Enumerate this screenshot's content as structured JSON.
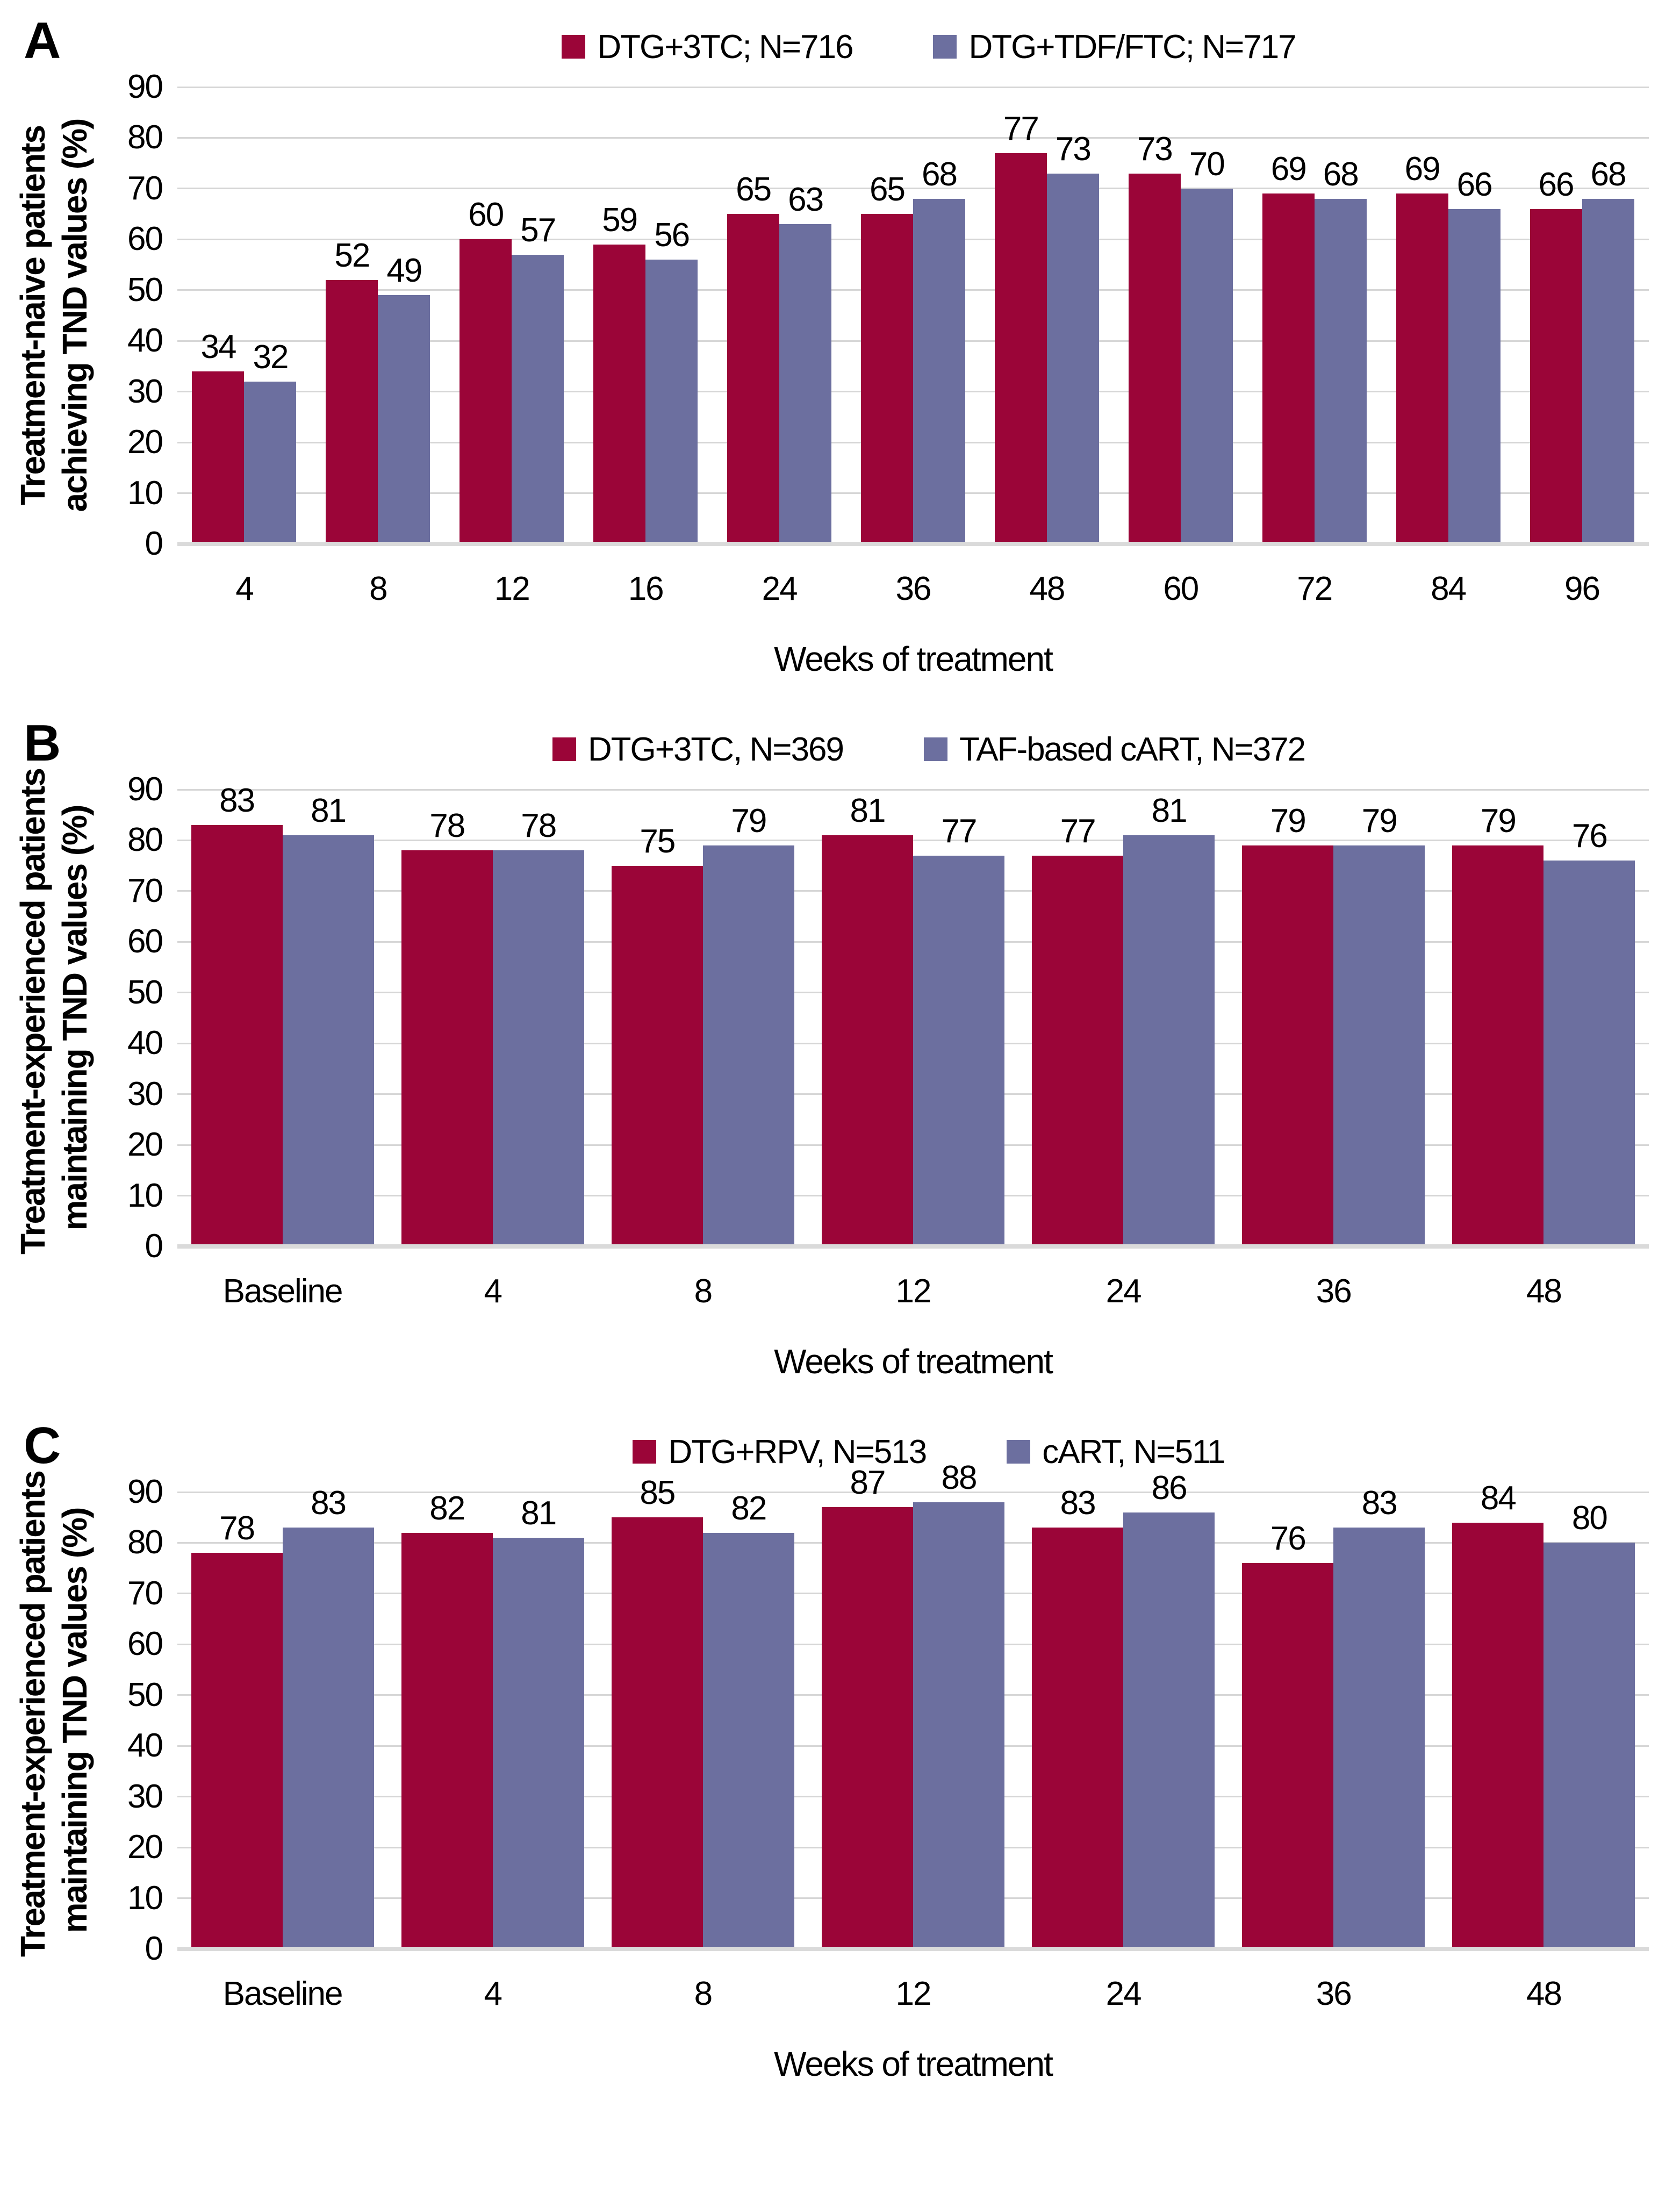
{
  "x_axis_title": "Weeks of treatment",
  "chart_data": [
    {
      "type": "bar",
      "panel_label": "A",
      "categories": [
        "4",
        "8",
        "12",
        "16",
        "24",
        "36",
        "48",
        "60",
        "72",
        "84",
        "96"
      ],
      "series": [
        {
          "name": "DTG+3TC; N=716",
          "color": "#9b0538",
          "values": [
            34,
            52,
            60,
            59,
            65,
            65,
            77,
            73,
            69,
            69,
            66
          ]
        },
        {
          "name": "DTG+TDF/FTC; N=717",
          "color": "#6c6f9f",
          "values": [
            32,
            49,
            57,
            56,
            63,
            68,
            73,
            70,
            68,
            66,
            68
          ]
        }
      ],
      "ylabel_line1": "Treatment-naive patients",
      "ylabel_line2": "achieving TND values (%)",
      "xlabel": "Weeks of treatment",
      "ylim": [
        0,
        90
      ],
      "ytick_step": 10,
      "grid": true,
      "legend_position": "top",
      "value_labels": true
    },
    {
      "type": "bar",
      "panel_label": "B",
      "categories": [
        "Baseline",
        "4",
        "8",
        "12",
        "24",
        "36",
        "48"
      ],
      "series": [
        {
          "name": "DTG+3TC, N=369",
          "color": "#9b0538",
          "values": [
            83,
            78,
            75,
            81,
            77,
            79,
            79
          ]
        },
        {
          "name": "TAF-based cART, N=372",
          "color": "#6c6f9f",
          "values": [
            81,
            78,
            79,
            77,
            81,
            79,
            76
          ]
        }
      ],
      "ylabel_line1": "Treatment-experienced patients",
      "ylabel_line2": "maintaining TND values (%)",
      "xlabel": "Weeks of treatment",
      "ylim": [
        0,
        90
      ],
      "ytick_step": 10,
      "grid": true,
      "legend_position": "top",
      "value_labels": true
    },
    {
      "type": "bar",
      "panel_label": "C",
      "categories": [
        "Baseline",
        "4",
        "8",
        "12",
        "24",
        "36",
        "48"
      ],
      "series": [
        {
          "name": "DTG+RPV, N=513",
          "color": "#9b0538",
          "values": [
            78,
            82,
            85,
            87,
            83,
            76,
            84
          ]
        },
        {
          "name": "cART, N=511",
          "color": "#6c6f9f",
          "values": [
            83,
            81,
            82,
            88,
            86,
            83,
            80
          ]
        }
      ],
      "ylabel_line1": "Treatment-experienced patients",
      "ylabel_line2": "maintaining TND values (%)",
      "xlabel": "Weeks of treatment",
      "ylim": [
        0,
        90
      ],
      "ytick_step": 10,
      "grid": true,
      "legend_position": "top",
      "value_labels": true
    }
  ]
}
